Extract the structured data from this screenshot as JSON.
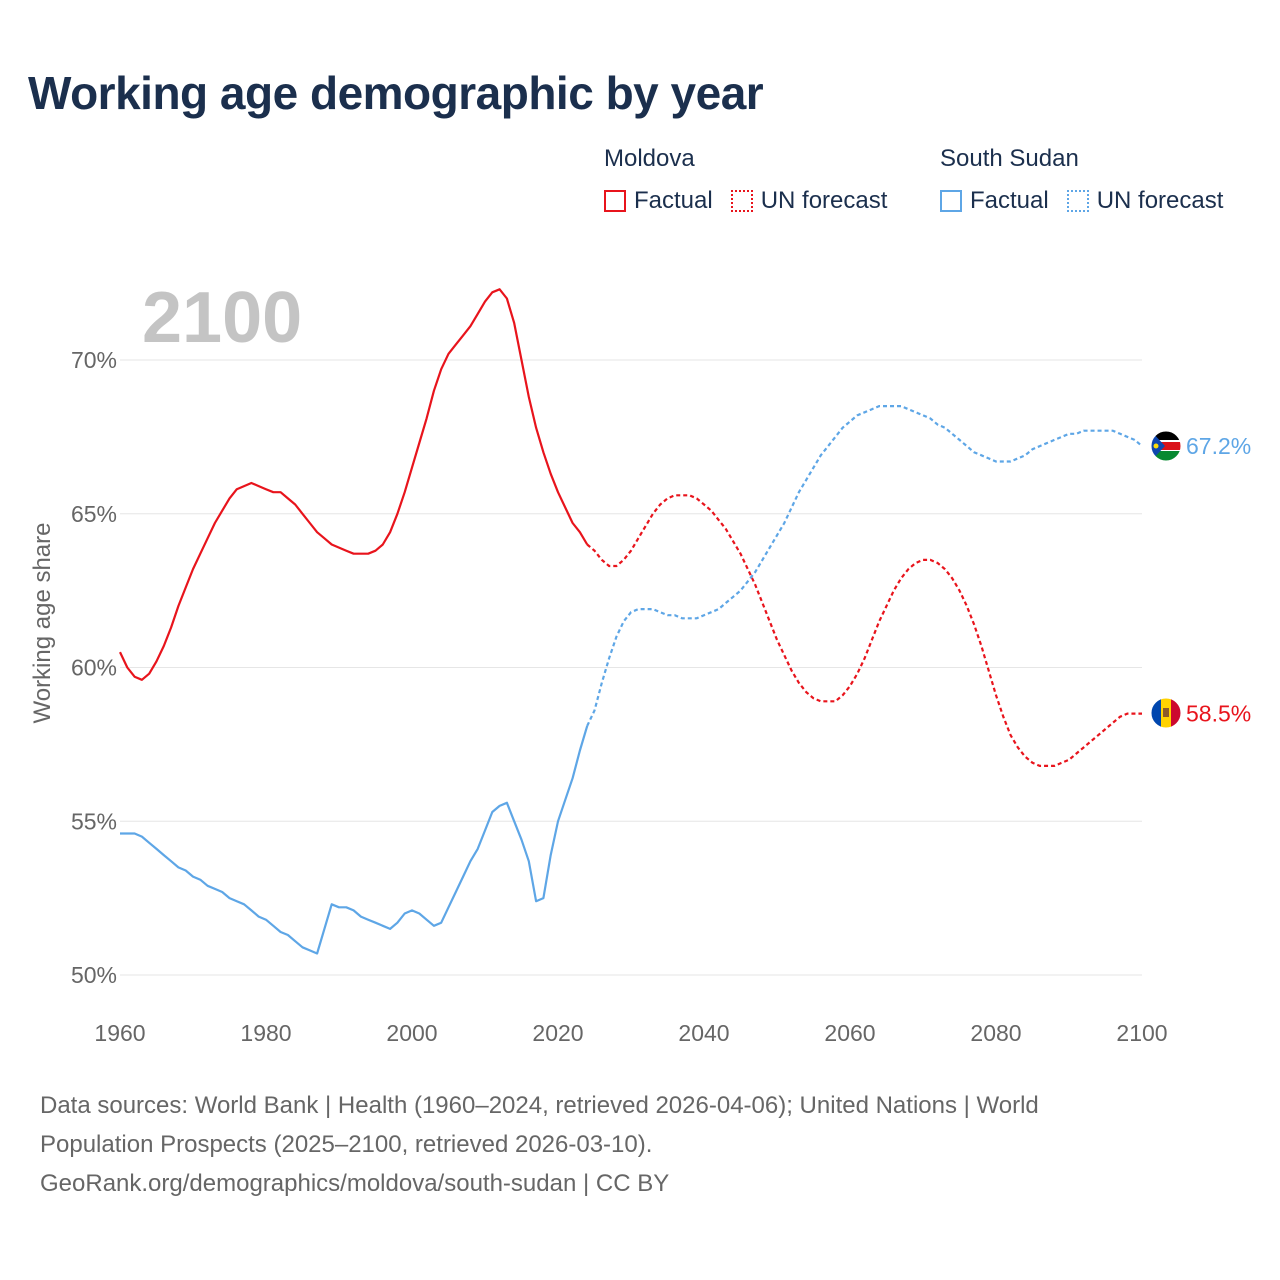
{
  "title": "Working age demographic by year",
  "year_watermark": "2100",
  "legend": {
    "groups": [
      {
        "name": "Moldova",
        "color": "#e8141c",
        "factual_label": "Factual",
        "forecast_label": "UN forecast"
      },
      {
        "name": "South Sudan",
        "color": "#5ea6e6",
        "factual_label": "Factual",
        "forecast_label": "UN forecast"
      }
    ]
  },
  "footer": {
    "line1": "Data sources: World Bank | Health (1960–2024, retrieved 2026-04-06); United Nations | World",
    "line2": "Population Prospects (2025–2100, retrieved 2026-03-10).",
    "line3": "GeoRank.org/demographics/moldova/south-sudan | CC BY"
  },
  "chart_data": {
    "type": "line",
    "title": "Working age demographic by year",
    "xlabel": "",
    "ylabel": "Working age share",
    "xlim": [
      1960,
      2100
    ],
    "ylim": [
      50,
      72
    ],
    "x_ticks": [
      1960,
      1980,
      2000,
      2020,
      2040,
      2060,
      2080,
      2100
    ],
    "y_ticks": [
      50,
      55,
      60,
      65,
      70
    ],
    "y_tick_labels": [
      "50%",
      "55%",
      "60%",
      "65%",
      "70%"
    ],
    "grid": true,
    "series": [
      {
        "name": "Moldova",
        "color": "#e8141c",
        "end_label": "58.5%",
        "flag": "moldova-flag-icon",
        "factual": [
          [
            1960,
            60.5
          ],
          [
            1961,
            60.0
          ],
          [
            1962,
            59.7
          ],
          [
            1963,
            59.6
          ],
          [
            1964,
            59.8
          ],
          [
            1965,
            60.2
          ],
          [
            1966,
            60.7
          ],
          [
            1967,
            61.3
          ],
          [
            1968,
            62.0
          ],
          [
            1969,
            62.6
          ],
          [
            1970,
            63.2
          ],
          [
            1971,
            63.7
          ],
          [
            1972,
            64.2
          ],
          [
            1973,
            64.7
          ],
          [
            1974,
            65.1
          ],
          [
            1975,
            65.5
          ],
          [
            1976,
            65.8
          ],
          [
            1977,
            65.9
          ],
          [
            1978,
            66.0
          ],
          [
            1979,
            65.9
          ],
          [
            1980,
            65.8
          ],
          [
            1981,
            65.7
          ],
          [
            1982,
            65.7
          ],
          [
            1983,
            65.5
          ],
          [
            1984,
            65.3
          ],
          [
            1985,
            65.0
          ],
          [
            1986,
            64.7
          ],
          [
            1987,
            64.4
          ],
          [
            1988,
            64.2
          ],
          [
            1989,
            64.0
          ],
          [
            1990,
            63.9
          ],
          [
            1991,
            63.8
          ],
          [
            1992,
            63.7
          ],
          [
            1993,
            63.7
          ],
          [
            1994,
            63.7
          ],
          [
            1995,
            63.8
          ],
          [
            1996,
            64.0
          ],
          [
            1997,
            64.4
          ],
          [
            1998,
            65.0
          ],
          [
            1999,
            65.7
          ],
          [
            2000,
            66.5
          ],
          [
            2001,
            67.3
          ],
          [
            2002,
            68.1
          ],
          [
            2003,
            69.0
          ],
          [
            2004,
            69.7
          ],
          [
            2005,
            70.2
          ],
          [
            2006,
            70.5
          ],
          [
            2007,
            70.8
          ],
          [
            2008,
            71.1
          ],
          [
            2009,
            71.5
          ],
          [
            2010,
            71.9
          ],
          [
            2011,
            72.2
          ],
          [
            2012,
            72.3
          ],
          [
            2013,
            72.0
          ],
          [
            2014,
            71.2
          ],
          [
            2015,
            70.0
          ],
          [
            2016,
            68.8
          ],
          [
            2017,
            67.8
          ],
          [
            2018,
            67.0
          ],
          [
            2019,
            66.3
          ],
          [
            2020,
            65.7
          ],
          [
            2021,
            65.2
          ],
          [
            2022,
            64.7
          ],
          [
            2023,
            64.4
          ],
          [
            2024,
            64.0
          ]
        ],
        "forecast": [
          [
            2024,
            64.0
          ],
          [
            2025,
            63.8
          ],
          [
            2026,
            63.5
          ],
          [
            2027,
            63.3
          ],
          [
            2028,
            63.3
          ],
          [
            2029,
            63.5
          ],
          [
            2030,
            63.8
          ],
          [
            2031,
            64.2
          ],
          [
            2032,
            64.6
          ],
          [
            2033,
            65.0
          ],
          [
            2034,
            65.3
          ],
          [
            2035,
            65.5
          ],
          [
            2036,
            65.6
          ],
          [
            2037,
            65.6
          ],
          [
            2038,
            65.6
          ],
          [
            2039,
            65.5
          ],
          [
            2040,
            65.3
          ],
          [
            2041,
            65.1
          ],
          [
            2042,
            64.8
          ],
          [
            2043,
            64.5
          ],
          [
            2044,
            64.1
          ],
          [
            2045,
            63.7
          ],
          [
            2046,
            63.2
          ],
          [
            2047,
            62.7
          ],
          [
            2048,
            62.1
          ],
          [
            2049,
            61.5
          ],
          [
            2050,
            60.9
          ],
          [
            2051,
            60.4
          ],
          [
            2052,
            59.9
          ],
          [
            2053,
            59.5
          ],
          [
            2054,
            59.2
          ],
          [
            2055,
            59.0
          ],
          [
            2056,
            58.9
          ],
          [
            2057,
            58.9
          ],
          [
            2058,
            58.9
          ],
          [
            2059,
            59.1
          ],
          [
            2060,
            59.4
          ],
          [
            2061,
            59.8
          ],
          [
            2062,
            60.3
          ],
          [
            2063,
            60.9
          ],
          [
            2064,
            61.5
          ],
          [
            2065,
            62.0
          ],
          [
            2066,
            62.5
          ],
          [
            2067,
            62.9
          ],
          [
            2068,
            63.2
          ],
          [
            2069,
            63.4
          ],
          [
            2070,
            63.5
          ],
          [
            2071,
            63.5
          ],
          [
            2072,
            63.4
          ],
          [
            2073,
            63.2
          ],
          [
            2074,
            62.9
          ],
          [
            2075,
            62.5
          ],
          [
            2076,
            62.0
          ],
          [
            2077,
            61.4
          ],
          [
            2078,
            60.7
          ],
          [
            2079,
            59.9
          ],
          [
            2080,
            59.1
          ],
          [
            2081,
            58.4
          ],
          [
            2082,
            57.8
          ],
          [
            2083,
            57.4
          ],
          [
            2084,
            57.1
          ],
          [
            2085,
            56.9
          ],
          [
            2086,
            56.8
          ],
          [
            2087,
            56.8
          ],
          [
            2088,
            56.8
          ],
          [
            2089,
            56.9
          ],
          [
            2090,
            57.0
          ],
          [
            2091,
            57.2
          ],
          [
            2092,
            57.4
          ],
          [
            2093,
            57.6
          ],
          [
            2094,
            57.8
          ],
          [
            2095,
            58.0
          ],
          [
            2096,
            58.2
          ],
          [
            2097,
            58.4
          ],
          [
            2098,
            58.5
          ],
          [
            2099,
            58.5
          ],
          [
            2100,
            58.5
          ]
        ]
      },
      {
        "name": "South Sudan",
        "color": "#5ea6e6",
        "end_label": "67.2%",
        "flag": "south-sudan-flag-icon",
        "factual": [
          [
            1960,
            54.6
          ],
          [
            1961,
            54.6
          ],
          [
            1962,
            54.6
          ],
          [
            1963,
            54.5
          ],
          [
            1964,
            54.3
          ],
          [
            1965,
            54.1
          ],
          [
            1966,
            53.9
          ],
          [
            1967,
            53.7
          ],
          [
            1968,
            53.5
          ],
          [
            1969,
            53.4
          ],
          [
            1970,
            53.2
          ],
          [
            1971,
            53.1
          ],
          [
            1972,
            52.9
          ],
          [
            1973,
            52.8
          ],
          [
            1974,
            52.7
          ],
          [
            1975,
            52.5
          ],
          [
            1976,
            52.4
          ],
          [
            1977,
            52.3
          ],
          [
            1978,
            52.1
          ],
          [
            1979,
            51.9
          ],
          [
            1980,
            51.8
          ],
          [
            1981,
            51.6
          ],
          [
            1982,
            51.4
          ],
          [
            1983,
            51.3
          ],
          [
            1984,
            51.1
          ],
          [
            1985,
            50.9
          ],
          [
            1986,
            50.8
          ],
          [
            1987,
            50.7
          ],
          [
            1988,
            51.5
          ],
          [
            1989,
            52.3
          ],
          [
            1990,
            52.2
          ],
          [
            1991,
            52.2
          ],
          [
            1992,
            52.1
          ],
          [
            1993,
            51.9
          ],
          [
            1994,
            51.8
          ],
          [
            1995,
            51.7
          ],
          [
            1996,
            51.6
          ],
          [
            1997,
            51.5
          ],
          [
            1998,
            51.7
          ],
          [
            1999,
            52.0
          ],
          [
            2000,
            52.1
          ],
          [
            2001,
            52.0
          ],
          [
            2002,
            51.8
          ],
          [
            2003,
            51.6
          ],
          [
            2004,
            51.7
          ],
          [
            2005,
            52.2
          ],
          [
            2006,
            52.7
          ],
          [
            2007,
            53.2
          ],
          [
            2008,
            53.7
          ],
          [
            2009,
            54.1
          ],
          [
            2010,
            54.7
          ],
          [
            2011,
            55.3
          ],
          [
            2012,
            55.5
          ],
          [
            2013,
            55.6
          ],
          [
            2014,
            55.0
          ],
          [
            2015,
            54.4
          ],
          [
            2016,
            53.7
          ],
          [
            2017,
            52.4
          ],
          [
            2018,
            52.5
          ],
          [
            2019,
            53.9
          ],
          [
            2020,
            55.0
          ],
          [
            2021,
            55.7
          ],
          [
            2022,
            56.4
          ],
          [
            2023,
            57.3
          ],
          [
            2024,
            58.1
          ]
        ],
        "forecast": [
          [
            2024,
            58.1
          ],
          [
            2025,
            58.6
          ],
          [
            2026,
            59.5
          ],
          [
            2027,
            60.3
          ],
          [
            2028,
            61.0
          ],
          [
            2029,
            61.5
          ],
          [
            2030,
            61.8
          ],
          [
            2031,
            61.9
          ],
          [
            2032,
            61.9
          ],
          [
            2033,
            61.9
          ],
          [
            2034,
            61.8
          ],
          [
            2035,
            61.7
          ],
          [
            2036,
            61.7
          ],
          [
            2037,
            61.6
          ],
          [
            2038,
            61.6
          ],
          [
            2039,
            61.6
          ],
          [
            2040,
            61.7
          ],
          [
            2041,
            61.8
          ],
          [
            2042,
            61.9
          ],
          [
            2043,
            62.1
          ],
          [
            2044,
            62.3
          ],
          [
            2045,
            62.5
          ],
          [
            2046,
            62.8
          ],
          [
            2047,
            63.1
          ],
          [
            2048,
            63.5
          ],
          [
            2049,
            63.9
          ],
          [
            2050,
            64.3
          ],
          [
            2051,
            64.7
          ],
          [
            2052,
            65.2
          ],
          [
            2053,
            65.7
          ],
          [
            2054,
            66.1
          ],
          [
            2055,
            66.5
          ],
          [
            2056,
            66.9
          ],
          [
            2057,
            67.2
          ],
          [
            2058,
            67.5
          ],
          [
            2059,
            67.8
          ],
          [
            2060,
            68.0
          ],
          [
            2061,
            68.2
          ],
          [
            2062,
            68.3
          ],
          [
            2063,
            68.4
          ],
          [
            2064,
            68.5
          ],
          [
            2065,
            68.5
          ],
          [
            2066,
            68.5
          ],
          [
            2067,
            68.5
          ],
          [
            2068,
            68.4
          ],
          [
            2069,
            68.3
          ],
          [
            2070,
            68.2
          ],
          [
            2071,
            68.1
          ],
          [
            2072,
            67.9
          ],
          [
            2073,
            67.8
          ],
          [
            2074,
            67.6
          ],
          [
            2075,
            67.4
          ],
          [
            2076,
            67.2
          ],
          [
            2077,
            67.0
          ],
          [
            2078,
            66.9
          ],
          [
            2079,
            66.8
          ],
          [
            2080,
            66.7
          ],
          [
            2081,
            66.7
          ],
          [
            2082,
            66.7
          ],
          [
            2083,
            66.8
          ],
          [
            2084,
            66.9
          ],
          [
            2085,
            67.1
          ],
          [
            2086,
            67.2
          ],
          [
            2087,
            67.3
          ],
          [
            2088,
            67.4
          ],
          [
            2089,
            67.5
          ],
          [
            2090,
            67.6
          ],
          [
            2091,
            67.6
          ],
          [
            2092,
            67.7
          ],
          [
            2093,
            67.7
          ],
          [
            2094,
            67.7
          ],
          [
            2095,
            67.7
          ],
          [
            2096,
            67.7
          ],
          [
            2097,
            67.6
          ],
          [
            2098,
            67.5
          ],
          [
            2099,
            67.4
          ],
          [
            2100,
            67.2
          ]
        ]
      }
    ]
  }
}
